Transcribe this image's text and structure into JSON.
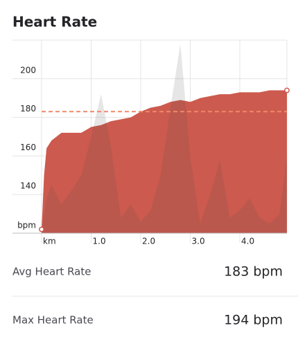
{
  "title": "Heart Rate",
  "chart_data": {
    "type": "area",
    "x": [
      0,
      0.05,
      0.1,
      0.2,
      0.3,
      0.4,
      0.6,
      0.8,
      1.0,
      1.2,
      1.4,
      1.6,
      1.8,
      2.0,
      2.2,
      2.4,
      2.6,
      2.8,
      3.0,
      3.2,
      3.4,
      3.6,
      3.8,
      4.0,
      4.2,
      4.4,
      4.6,
      4.8,
      4.95
    ],
    "series": [
      {
        "color": "#cd5a4e",
        "values": [
          122,
          150,
          164,
          168,
          170,
          172,
          172,
          172,
          175,
          176,
          178,
          179,
          180,
          183,
          185,
          186,
          188,
          189,
          188,
          190,
          191,
          192,
          192,
          193,
          193,
          193,
          194,
          194,
          194
        ]
      },
      {
        "color": "#505050",
        "values": [
          122,
          130,
          138,
          145,
          140,
          135,
          142,
          150,
          170,
          192,
          165,
          128,
          135,
          126,
          132,
          150,
          185,
          218,
          160,
          125,
          140,
          158,
          128,
          132,
          138,
          128,
          125,
          130,
          160
        ]
      }
    ],
    "reference_line": 183,
    "reference_color": "#f0876a",
    "xlim": [
      0,
      4.95
    ],
    "ylim": [
      120,
      220
    ],
    "xticks": [
      {
        "value": 0,
        "label": "km"
      },
      {
        "value": 1,
        "label": "1.0"
      },
      {
        "value": 2,
        "label": "2.0"
      },
      {
        "value": 3,
        "label": "3.0"
      },
      {
        "value": 4,
        "label": "4.0"
      }
    ],
    "yticks": [
      {
        "value": 120,
        "label": "bpm"
      },
      140,
      160,
      180,
      200
    ],
    "grid": true
  },
  "stats": [
    {
      "label": "Avg Heart Rate",
      "value": "183 bpm"
    },
    {
      "label": "Max Heart Rate",
      "value": "194 bpm"
    }
  ]
}
